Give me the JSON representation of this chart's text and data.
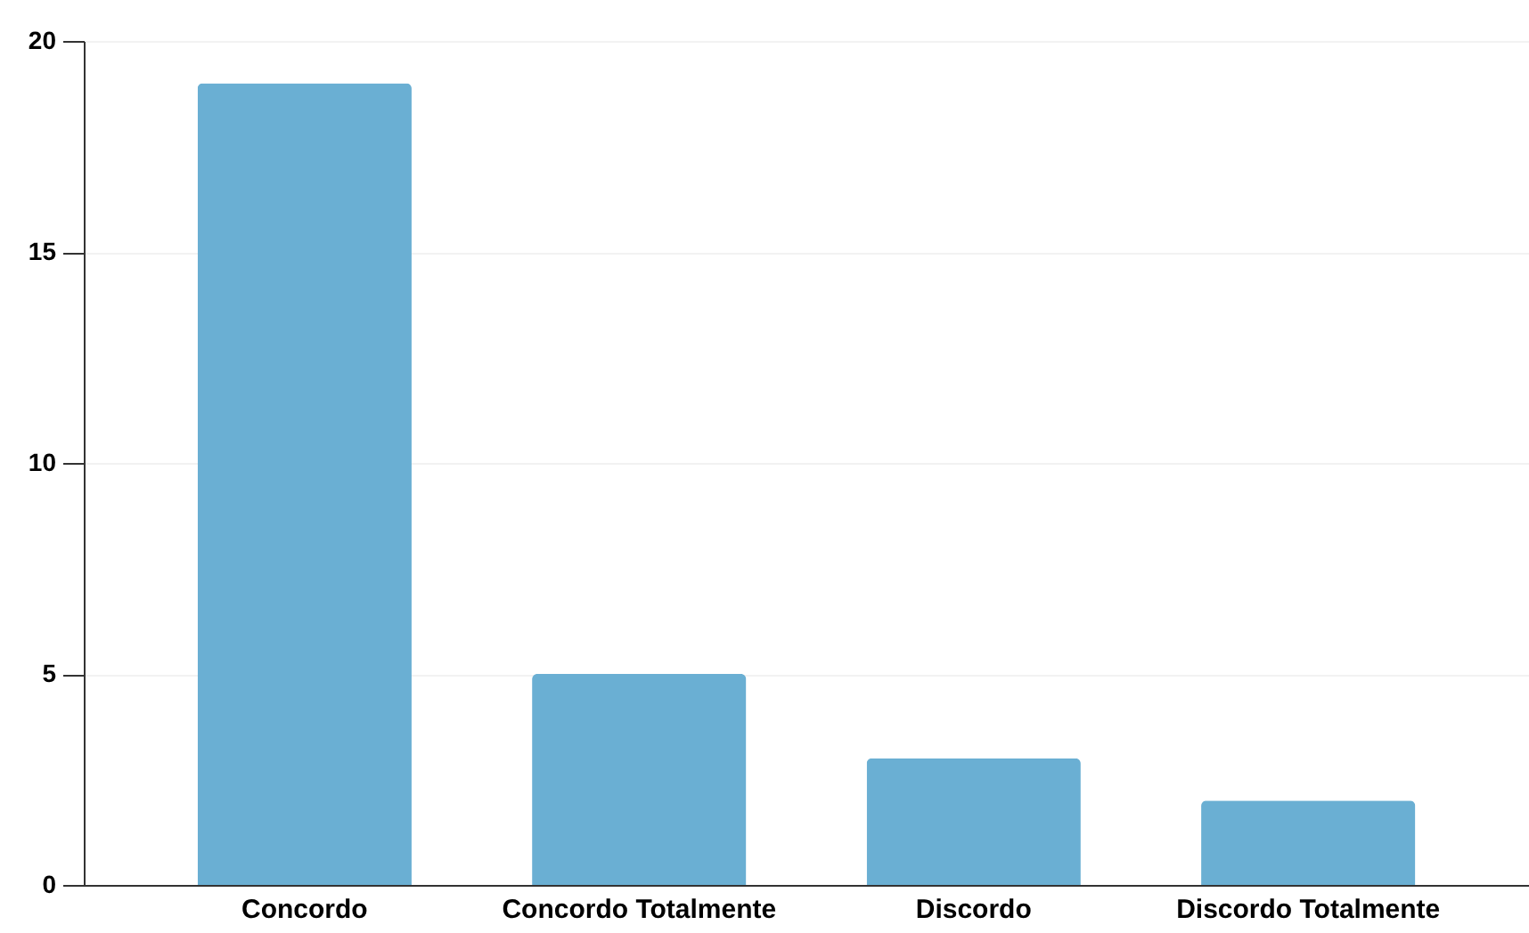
{
  "chart_data": {
    "type": "bar",
    "categories": [
      "Concordo",
      "Concordo Totalmente",
      "Discordo",
      "Discordo Totalmente"
    ],
    "values": [
      19,
      5,
      3,
      2
    ],
    "color": "#6aafd3",
    "ylim": [
      0,
      20
    ],
    "yticks": [
      0,
      5,
      10,
      15,
      20
    ],
    "grid": "y"
  }
}
